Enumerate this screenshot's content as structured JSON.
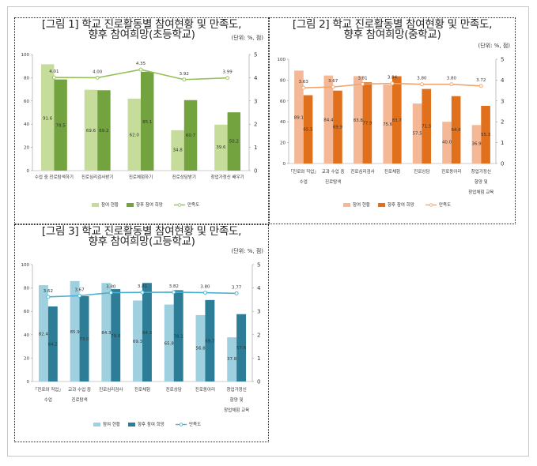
{
  "chart_data": [
    {
      "type": "bar",
      "title": "[그림 1] 학교 진로활동별 참여현황 및 만족도,\n향후 참여희망(초등학교)",
      "unit": "(단위: %, 점)",
      "categories": [
        [
          "수업 중 진로탐색하기"
        ],
        [
          "진로심리검사받기"
        ],
        [
          "진로체험하기"
        ],
        [
          "진로상담받기"
        ],
        [
          "창업가정신 배우기"
        ]
      ],
      "series": [
        {
          "name": "참여 현황",
          "values": [
            91.6,
            69.6,
            62.0,
            34.8,
            39.6
          ],
          "color": "#c5dc9a"
        },
        {
          "name": "향후 참여 희망",
          "values": [
            78.5,
            69.2,
            85.1,
            60.7,
            50.2
          ],
          "color": "#72a33e"
        }
      ],
      "line": {
        "name": "만족도",
        "values": [
          4.01,
          4.0,
          4.35,
          3.92,
          3.99
        ],
        "color": "#95c05a",
        "marker_fill": "#ffffff"
      },
      "ylim": [
        0,
        100
      ],
      "y_ticks": [
        "0",
        "20",
        "40",
        "60",
        "80",
        "100"
      ],
      "y2lim": [
        0,
        5
      ],
      "y2_ticks": [
        "0",
        "1",
        "2",
        "3",
        "4",
        "5"
      ],
      "legend_position": "bottom"
    },
    {
      "type": "bar",
      "title": "[그림 2] 학교 진로활동별 참여현황 및 만족도,\n향후 참여희망(중학교)",
      "unit": "(단위: %, 점)",
      "categories": [
        [
          "「진로와 직업」",
          "수업"
        ],
        [
          "교과 수업 중",
          "진로탐색"
        ],
        [
          "진로심리검사"
        ],
        [
          "진로체험"
        ],
        [
          "진로상담"
        ],
        [
          "진로동아리"
        ],
        [
          "창업가정신",
          "함양 및",
          "창업체험 교육"
        ]
      ],
      "series": [
        {
          "name": "참여 현황",
          "values": [
            89.1,
            84.4,
            83.8,
            75.6,
            57.5,
            40.0,
            36.9
          ],
          "color": "#f4b896"
        },
        {
          "name": "향후 참여 희망",
          "values": [
            65.5,
            69.9,
            77.9,
            83.7,
            71.5,
            64.6,
            55.3
          ],
          "color": "#e0701c"
        }
      ],
      "line": {
        "name": "만족도",
        "values": [
          3.63,
          3.67,
          3.81,
          3.84,
          3.8,
          3.8,
          3.72
        ],
        "color": "#f0a56e",
        "marker_fill": "#ffffff"
      },
      "ylim": [
        0,
        100
      ],
      "y_ticks": [
        "0",
        "20",
        "40",
        "60",
        "80",
        "100"
      ],
      "y2lim": [
        0,
        5
      ],
      "y2_ticks": [
        "0",
        "1",
        "2",
        "3",
        "4",
        "5"
      ],
      "legend_position": "bottom"
    },
    {
      "type": "bar",
      "title": "[그림 3] 학교 진로활동별 참여현황 및 만족도,\n향후 참여희망(고등학교)",
      "unit": "(단위: %, 점)",
      "categories": [
        [
          "「진로와 직업」",
          "수업"
        ],
        [
          "교과 수업 중",
          "진로탐색"
        ],
        [
          "진로심리검사"
        ],
        [
          "진로체험"
        ],
        [
          "진로상담"
        ],
        [
          "진로동아리"
        ],
        [
          "창업가정신",
          "함양 및",
          "창업체험 교육"
        ]
      ],
      "series": [
        {
          "name": "참여 현황",
          "values": [
            82.4,
            85.9,
            84.3,
            69.3,
            65.8,
            56.8,
            37.8
          ],
          "color": "#9fd0e0"
        },
        {
          "name": "향후 참여 희망",
          "values": [
            64.2,
            73.0,
            79.0,
            84.3,
            78.1,
            69.7,
            57.6
          ],
          "color": "#2c7d95"
        }
      ],
      "line": {
        "name": "만족도",
        "values": [
          3.62,
          3.67,
          3.8,
          3.81,
          3.82,
          3.8,
          3.77
        ],
        "color": "#4bb0cf",
        "marker_fill": "#ffffff"
      },
      "ylim": [
        0,
        100
      ],
      "y_ticks": [
        "0",
        "20",
        "40",
        "60",
        "80",
        "100"
      ],
      "y2lim": [
        0,
        5
      ],
      "y2_ticks": [
        "0",
        "1",
        "2",
        "3",
        "4",
        "5"
      ],
      "legend_position": "bottom"
    }
  ]
}
